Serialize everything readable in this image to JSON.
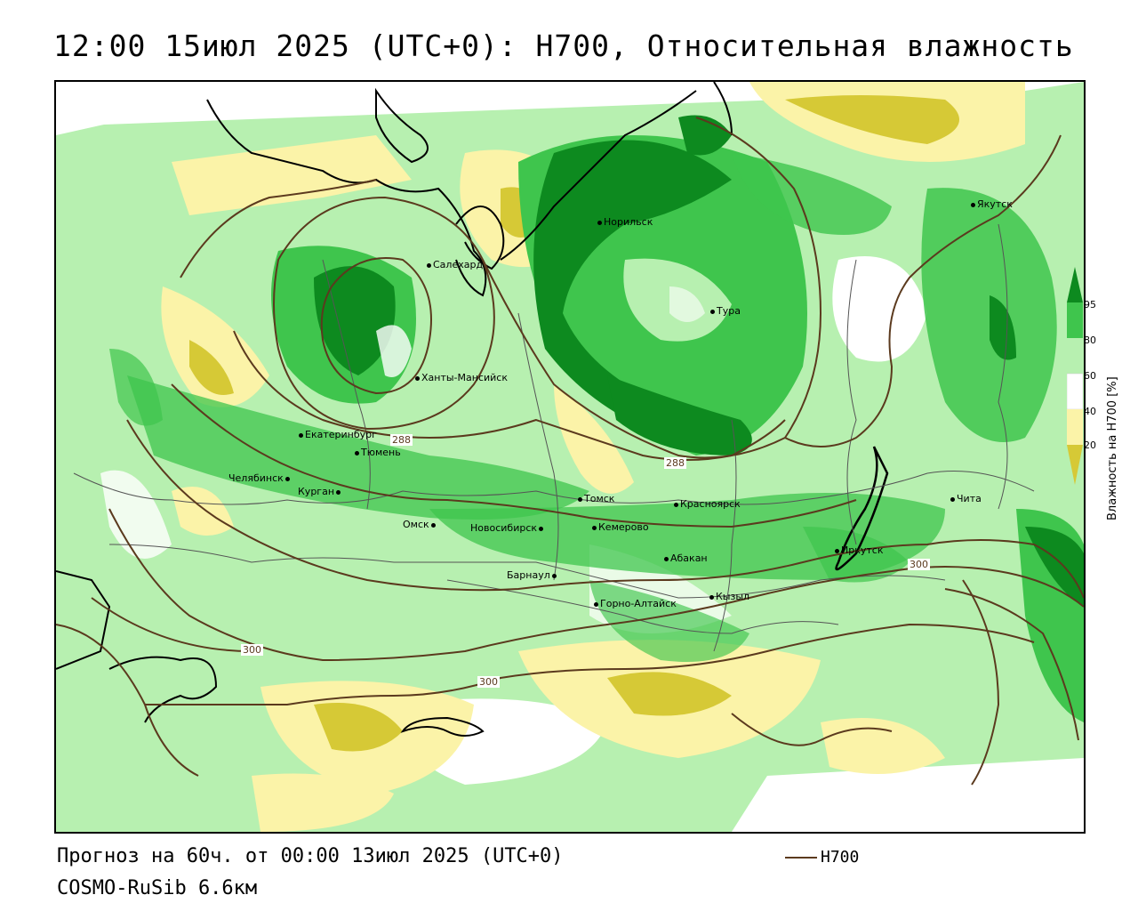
{
  "header": {
    "title": "12:00 15июл 2025 (UTC+0): H700, Относительная влажность"
  },
  "footer": {
    "forecast": "Прогноз на 60ч. от 00:00 13июл 2025 (UTC+0)",
    "model": "COSMO-RuSib 6.6км",
    "legend_label": "H700"
  },
  "colorbar": {
    "title": "Влажность на H700 [%]",
    "ticks": [
      "95",
      "80",
      "60",
      "40",
      "20"
    ],
    "colors": {
      "95": "#0d8a1f",
      "80": "#3fc54d",
      "60": "#b7f0b0",
      "40": "#fbf3a8",
      "20": "#d6c936"
    }
  },
  "colors": {
    "contour": "#5b3a1e",
    "coast": "#000000",
    "border": "#555555"
  },
  "contour_labels": [
    "288",
    "288",
    "300",
    "300",
    "300"
  ],
  "cities": [
    "Якутск",
    "Норильск",
    "Салехард",
    "Тура",
    "Ханты-Мансийск",
    "Екатеринбург",
    "Тюмень",
    "Челябинск",
    "Курган",
    "Омск",
    "Новосибирск",
    "Томск",
    "Кемерово",
    "Красноярск",
    "Абакан",
    "Барнаул",
    "Горно-Алтайск",
    "Кызыл",
    "Иркутск",
    "Чита"
  ]
}
